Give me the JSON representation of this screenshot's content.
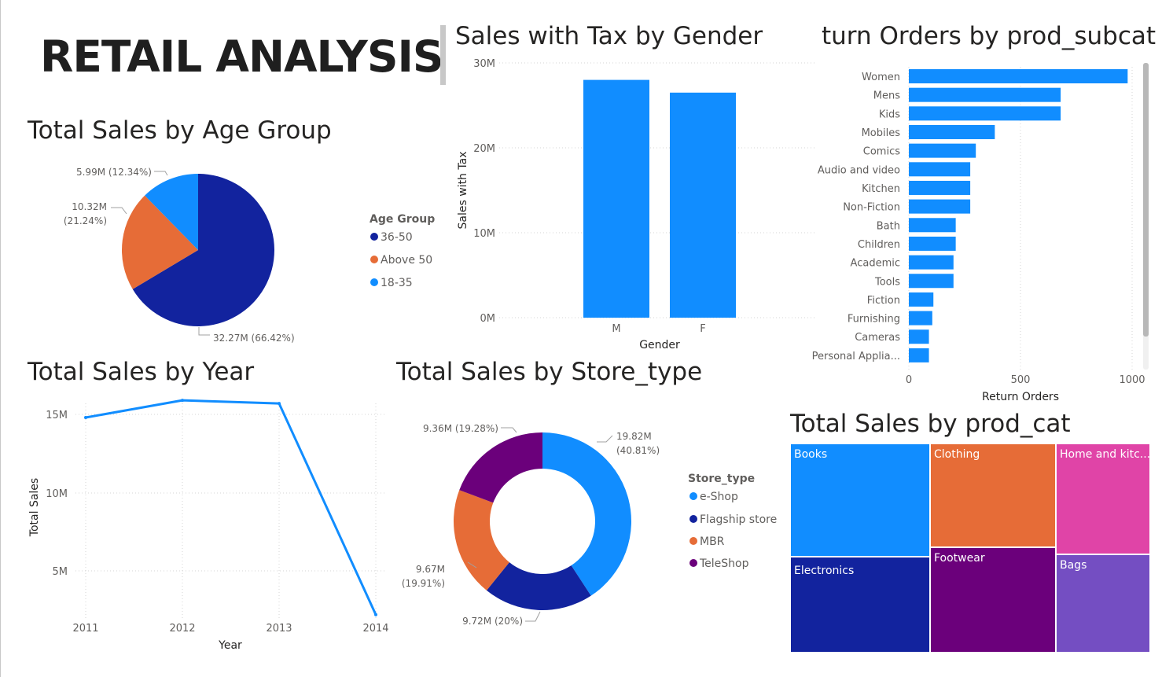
{
  "page": {
    "title": "RETAIL ANALYSIS"
  },
  "colors": {
    "navy": "#12239E",
    "orange": "#E66C37",
    "blue": "#118DFF",
    "purple": "#6B007B",
    "magenta": "#E044A7",
    "violet": "#744EC2",
    "grid": "#d6d6d6",
    "axis_text": "#605E5C"
  },
  "charts": {
    "age": {
      "title": "Total Sales by Age Group",
      "legend_title": "Age Group",
      "legend": [
        "36-50",
        "Above 50",
        "18-35"
      ],
      "data_labels": [
        "32.27M (66.42%)",
        "10.32M",
        "(21.24%)",
        "5.99M (12.34%)"
      ]
    },
    "gender": {
      "title": "Sales with Tax by Gender",
      "y_ticks": [
        "30M",
        "20M",
        "10M",
        "0M"
      ],
      "x_ticks": [
        "M",
        "F"
      ]
    },
    "subcat": {
      "title": "turn Orders by prod_subcat",
      "x_ticks": [
        "0",
        "500",
        "1000"
      ],
      "categories": [
        "Women",
        "Mens",
        "Kids",
        "Mobiles",
        "Comics",
        "Audio and video",
        "Kitchen",
        "Non-Fiction",
        "Bath",
        "Children",
        "Academic",
        "Tools",
        "Fiction",
        "Furnishing",
        "Cameras",
        "Personal Applia..."
      ]
    },
    "year": {
      "title": "Total Sales by Year",
      "y_ticks": [
        "15M",
        "10M",
        "5M"
      ],
      "x_ticks": [
        "2011",
        "2012",
        "2013",
        "2014"
      ]
    },
    "store": {
      "title": "Total Sales by Store_type",
      "legend_title": "Store_type",
      "legend": [
        "e-Shop",
        "Flagship store",
        "MBR",
        "TeleShop"
      ],
      "data_labels": [
        "19.82M",
        "(40.81%)",
        "9.72M (20%)",
        "9.67M",
        "(19.91%)",
        "9.36M (19.28%)"
      ]
    },
    "prodcat": {
      "title": "Total Sales by prod_cat",
      "cells": [
        "Books",
        "Electronics",
        "Clothing",
        "Footwear",
        "Home and kitc...",
        "Bags"
      ]
    }
  },
  "chart_data": [
    {
      "type": "pie",
      "title": "Total Sales by Age Group",
      "legend_title": "Age Group",
      "legend_position": "right",
      "slices": [
        {
          "label": "36-50",
          "value": 32.27,
          "percent": 66.42,
          "color": "#12239E"
        },
        {
          "label": "Above 50",
          "value": 10.32,
          "percent": 21.24,
          "color": "#E66C37"
        },
        {
          "label": "18-35",
          "value": 5.99,
          "percent": 12.34,
          "color": "#118DFF"
        }
      ],
      "unit": "M"
    },
    {
      "type": "bar",
      "title": "Sales with Tax by Gender",
      "xlabel": "Gender",
      "ylabel": "Sales with Tax",
      "categories": [
        "M",
        "F"
      ],
      "values": [
        28000000,
        26500000
      ],
      "ylim": [
        0,
        30000000
      ],
      "grid": true,
      "color": "#118DFF"
    },
    {
      "type": "bar",
      "orientation": "horizontal",
      "title": "turn Orders by prod_subcat",
      "xlabel": "Return Orders",
      "ylabel": "",
      "categories": [
        "Women",
        "Mens",
        "Kids",
        "Mobiles",
        "Comics",
        "Audio and video",
        "Kitchen",
        "Non-Fiction",
        "Bath",
        "Children",
        "Academic",
        "Tools",
        "Fiction",
        "Furnishing",
        "Cameras",
        "Personal Applia..."
      ],
      "values": [
        980,
        680,
        680,
        385,
        300,
        275,
        275,
        275,
        210,
        210,
        200,
        200,
        110,
        105,
        90,
        90
      ],
      "xlim": [
        0,
        1000
      ],
      "grid": true,
      "color": "#118DFF"
    },
    {
      "type": "line",
      "title": "Total Sales by Year",
      "xlabel": "Year",
      "ylabel": "Total Sales",
      "x": [
        2011,
        2012,
        2013,
        2014
      ],
      "values": [
        14800000,
        15900000,
        15700000,
        2200000
      ],
      "ylim": [
        0,
        16500000
      ],
      "grid": true,
      "color": "#118DFF"
    },
    {
      "type": "pie",
      "donut": true,
      "title": "Total Sales by Store_type",
      "legend_title": "Store_type",
      "legend_position": "right",
      "slices": [
        {
          "label": "e-Shop",
          "value": 19.82,
          "percent": 40.81,
          "color": "#118DFF"
        },
        {
          "label": "Flagship store",
          "value": 9.72,
          "percent": 20,
          "color": "#12239E"
        },
        {
          "label": "MBR",
          "value": 9.67,
          "percent": 19.91,
          "color": "#E66C37"
        },
        {
          "label": "TeleShop",
          "value": 9.36,
          "percent": 19.28,
          "color": "#6B007B"
        }
      ],
      "unit": "M"
    },
    {
      "type": "treemap",
      "title": "Total Sales by prod_cat",
      "items": [
        {
          "label": "Books",
          "color": "#118DFF"
        },
        {
          "label": "Electronics",
          "color": "#12239E"
        },
        {
          "label": "Clothing",
          "color": "#E66C37"
        },
        {
          "label": "Footwear",
          "color": "#6B007B"
        },
        {
          "label": "Home and kitc...",
          "color": "#E044A7"
        },
        {
          "label": "Bags",
          "color": "#744EC2"
        }
      ]
    }
  ]
}
